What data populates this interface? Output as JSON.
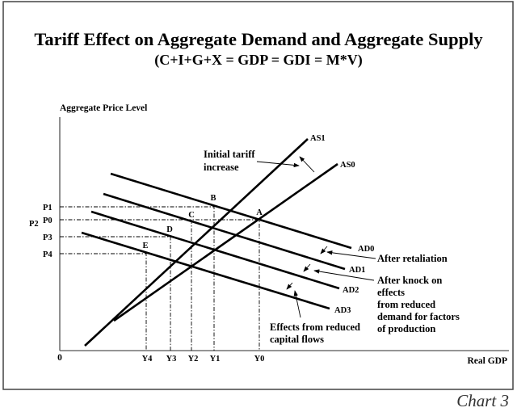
{
  "title": "Tariff Effect on Aggregate Demand and Aggregate Supply",
  "subtitle": "(C+I+G+X = GDP = GDI = M*V)",
  "y_axis_label": "Aggregate Price Level",
  "x_axis_label": "Real GDP",
  "origin_label": "0",
  "curves": {
    "as1": "AS1",
    "as0": "AS0",
    "ad0": "AD0",
    "ad1": "AD1",
    "ad2": "AD2",
    "ad3": "AD3"
  },
  "points": {
    "a": "A",
    "b": "B",
    "c": "C",
    "d": "D",
    "e": "E"
  },
  "price_labels": {
    "p1": "P1",
    "p0": "P0",
    "p2": "P2",
    "p3": "P3",
    "p4": "P4"
  },
  "output_labels": {
    "y4": "Y4",
    "y3": "Y3",
    "y2": "Y2",
    "y1": "Y1",
    "y0": "Y0"
  },
  "annotations": {
    "initial_tariff": [
      "Initial tariff",
      "increase"
    ],
    "after_retaliation": "After retaliation",
    "knock_on": [
      "After knock on",
      "effects",
      "from reduced",
      "demand for factors",
      "of production"
    ],
    "capital_flows": [
      "Effects from reduced",
      "capital flows"
    ]
  },
  "footer": "Chart 3"
}
